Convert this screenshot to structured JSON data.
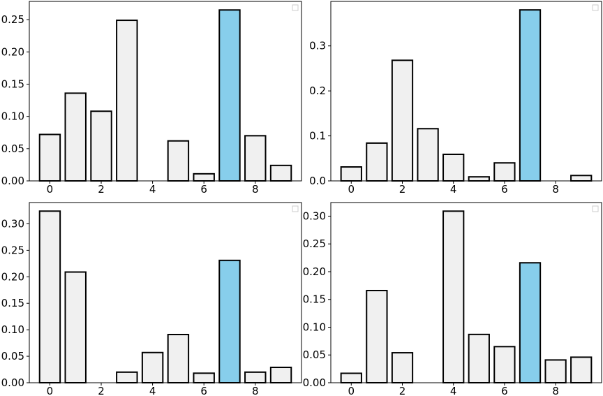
{
  "colors": {
    "bar_fill": "#f0f0f0",
    "highlight_fill": "#87ceeb",
    "bar_edge": "#000000",
    "axes_edge": "#000000",
    "legend_edge": "#cccccc"
  },
  "chart_data": [
    {
      "type": "bar",
      "title": "",
      "xlabel": "",
      "ylabel": "",
      "x": [
        0,
        1,
        2,
        3,
        4,
        5,
        6,
        7,
        8,
        9
      ],
      "values": [
        0.072,
        0.136,
        0.108,
        0.249,
        0.0,
        0.062,
        0.011,
        0.265,
        0.07,
        0.024
      ],
      "highlight_index": 7,
      "xticks": [
        0,
        2,
        4,
        6,
        8
      ],
      "yticks": [
        0.0,
        0.05,
        0.1,
        0.15,
        0.2,
        0.25
      ],
      "ytick_labels": [
        "0.00",
        "0.05",
        "0.10",
        "0.15",
        "0.20",
        "0.25"
      ],
      "xlim": [
        -0.8,
        9.8
      ],
      "ylim": [
        0,
        0.2783
      ],
      "grid": false,
      "legend": "top-right (empty)"
    },
    {
      "type": "bar",
      "title": "",
      "xlabel": "",
      "ylabel": "",
      "x": [
        0,
        1,
        2,
        3,
        4,
        5,
        6,
        7,
        8,
        9
      ],
      "values": [
        0.031,
        0.084,
        0.268,
        0.116,
        0.059,
        0.009,
        0.04,
        0.38,
        0.0,
        0.012
      ],
      "highlight_index": 7,
      "xticks": [
        0,
        2,
        4,
        6,
        8
      ],
      "yticks": [
        0.0,
        0.1,
        0.2,
        0.3
      ],
      "ytick_labels": [
        "0.0",
        "0.1",
        "0.2",
        "0.3"
      ],
      "xlim": [
        -0.8,
        9.8
      ],
      "ylim": [
        0,
        0.3989
      ],
      "grid": false,
      "legend": "top-right (empty)"
    },
    {
      "type": "bar",
      "title": "",
      "xlabel": "",
      "ylabel": "",
      "x": [
        0,
        1,
        2,
        3,
        4,
        5,
        6,
        7,
        8,
        9
      ],
      "values": [
        0.324,
        0.209,
        0.0,
        0.02,
        0.057,
        0.091,
        0.018,
        0.231,
        0.02,
        0.029
      ],
      "highlight_index": 7,
      "xticks": [
        0,
        2,
        4,
        6,
        8
      ],
      "yticks": [
        0.0,
        0.05,
        0.1,
        0.15,
        0.2,
        0.25,
        0.3
      ],
      "ytick_labels": [
        "0.00",
        "0.05",
        "0.10",
        "0.15",
        "0.20",
        "0.25",
        "0.30"
      ],
      "xlim": [
        -0.8,
        9.8
      ],
      "ylim": [
        0,
        0.3402
      ],
      "grid": false,
      "legend": "top-right (empty)"
    },
    {
      "type": "bar",
      "title": "",
      "xlabel": "",
      "ylabel": "",
      "x": [
        0,
        1,
        2,
        3,
        4,
        5,
        6,
        7,
        8,
        9
      ],
      "values": [
        0.017,
        0.166,
        0.054,
        0.0,
        0.309,
        0.087,
        0.065,
        0.216,
        0.041,
        0.046
      ],
      "highlight_index": 7,
      "xticks": [
        0,
        2,
        4,
        6,
        8
      ],
      "yticks": [
        0.0,
        0.05,
        0.1,
        0.15,
        0.2,
        0.25,
        0.3
      ],
      "ytick_labels": [
        "0.00",
        "0.05",
        "0.10",
        "0.15",
        "0.20",
        "0.25",
        "0.30"
      ],
      "xlim": [
        -0.8,
        9.8
      ],
      "ylim": [
        0,
        0.3245
      ],
      "grid": false,
      "legend": "top-right (empty)"
    }
  ]
}
